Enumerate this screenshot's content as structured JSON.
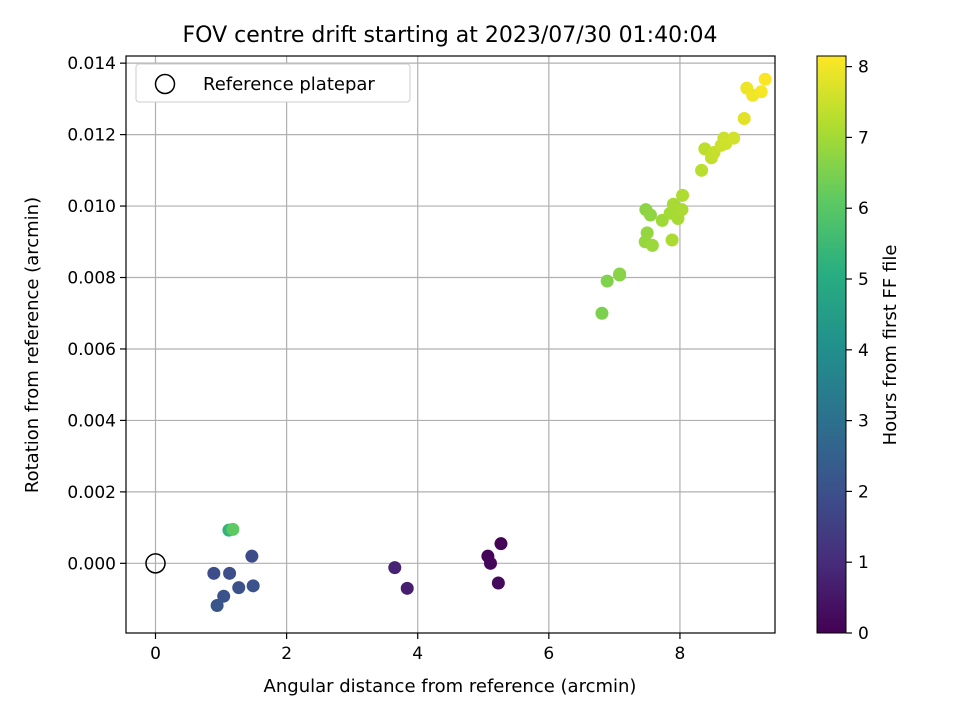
{
  "chart_data": {
    "type": "scatter",
    "title": "FOV centre drift starting at 2023/07/30 01:40:04",
    "xlabel": "Angular distance from reference (arcmin)",
    "ylabel": "Rotation from reference (arcmin)",
    "xlim": [
      -0.45,
      9.45
    ],
    "ylim": [
      -0.00195,
      0.0142
    ],
    "xticks": [
      0,
      2,
      4,
      6,
      8
    ],
    "xtick_labels": [
      "0",
      "2",
      "4",
      "6",
      "8"
    ],
    "yticks": [
      0.0,
      0.002,
      0.004,
      0.006,
      0.008,
      0.01,
      0.012,
      0.014
    ],
    "ytick_labels": [
      "0.000",
      "0.002",
      "0.004",
      "0.006",
      "0.008",
      "0.010",
      "0.012",
      "0.014"
    ],
    "grid": true,
    "legend": {
      "position": "top-left",
      "entries": [
        "Reference platepar"
      ]
    },
    "colorbar": {
      "label": "Hours from first FF file",
      "range": [
        0,
        8.15
      ],
      "ticks": [
        0,
        1,
        2,
        3,
        4,
        5,
        6,
        7,
        8
      ],
      "tick_labels": [
        "0",
        "1",
        "2",
        "3",
        "4",
        "5",
        "6",
        "7",
        "8"
      ],
      "colormap": "viridis"
    },
    "reference_point": {
      "x": 0,
      "y": 0
    },
    "points": [
      {
        "x": 5.27,
        "y": 0.00055,
        "h": 0.05
      },
      {
        "x": 5.07,
        "y": 0.0002,
        "h": 0.1
      },
      {
        "x": 5.11,
        "y": 0.0,
        "h": 0.15
      },
      {
        "x": 5.23,
        "y": -0.00055,
        "h": 0.2
      },
      {
        "x": 3.84,
        "y": -0.0007,
        "h": 0.7
      },
      {
        "x": 3.65,
        "y": -0.00012,
        "h": 0.8
      },
      {
        "x": 1.47,
        "y": 0.0002,
        "h": 1.85
      },
      {
        "x": 0.89,
        "y": -0.00028,
        "h": 1.9
      },
      {
        "x": 1.13,
        "y": -0.00028,
        "h": 1.95
      },
      {
        "x": 1.27,
        "y": -0.00068,
        "h": 2.0
      },
      {
        "x": 1.49,
        "y": -0.00063,
        "h": 2.05
      },
      {
        "x": 1.04,
        "y": -0.00092,
        "h": 2.1
      },
      {
        "x": 0.94,
        "y": -0.00118,
        "h": 2.15
      },
      {
        "x": 1.12,
        "y": 0.00093,
        "h": 5.3
      },
      {
        "x": 1.18,
        "y": 0.00095,
        "h": 6.1
      },
      {
        "x": 6.81,
        "y": 0.007,
        "h": 6.5
      },
      {
        "x": 6.89,
        "y": 0.0079,
        "h": 6.55
      },
      {
        "x": 7.08,
        "y": 0.00807,
        "h": 6.6
      },
      {
        "x": 7.08,
        "y": 0.0081,
        "h": 6.65
      },
      {
        "x": 7.48,
        "y": 0.0099,
        "h": 6.7
      },
      {
        "x": 7.55,
        "y": 0.00975,
        "h": 6.75
      },
      {
        "x": 7.5,
        "y": 0.00925,
        "h": 6.8
      },
      {
        "x": 7.47,
        "y": 0.009,
        "h": 6.85
      },
      {
        "x": 7.58,
        "y": 0.0089,
        "h": 6.9
      },
      {
        "x": 7.73,
        "y": 0.0096,
        "h": 6.95
      },
      {
        "x": 7.85,
        "y": 0.0098,
        "h": 7.0
      },
      {
        "x": 7.9,
        "y": 0.01005,
        "h": 7.05
      },
      {
        "x": 7.97,
        "y": 0.00965,
        "h": 7.05
      },
      {
        "x": 7.88,
        "y": 0.00905,
        "h": 7.1
      },
      {
        "x": 8.03,
        "y": 0.0099,
        "h": 7.1
      },
      {
        "x": 8.04,
        "y": 0.0103,
        "h": 7.15
      },
      {
        "x": 8.33,
        "y": 0.011,
        "h": 7.3
      },
      {
        "x": 8.38,
        "y": 0.0116,
        "h": 7.35
      },
      {
        "x": 8.48,
        "y": 0.01135,
        "h": 7.4
      },
      {
        "x": 8.52,
        "y": 0.0115,
        "h": 7.45
      },
      {
        "x": 8.63,
        "y": 0.0117,
        "h": 7.5
      },
      {
        "x": 8.67,
        "y": 0.0119,
        "h": 7.5
      },
      {
        "x": 8.7,
        "y": 0.01175,
        "h": 7.55
      },
      {
        "x": 8.82,
        "y": 0.0119,
        "h": 7.6
      },
      {
        "x": 8.98,
        "y": 0.01245,
        "h": 7.8
      },
      {
        "x": 9.02,
        "y": 0.0133,
        "h": 7.95
      },
      {
        "x": 9.11,
        "y": 0.0131,
        "h": 8.0
      },
      {
        "x": 9.24,
        "y": 0.0132,
        "h": 8.05
      },
      {
        "x": 9.3,
        "y": 0.01355,
        "h": 8.1
      }
    ]
  }
}
